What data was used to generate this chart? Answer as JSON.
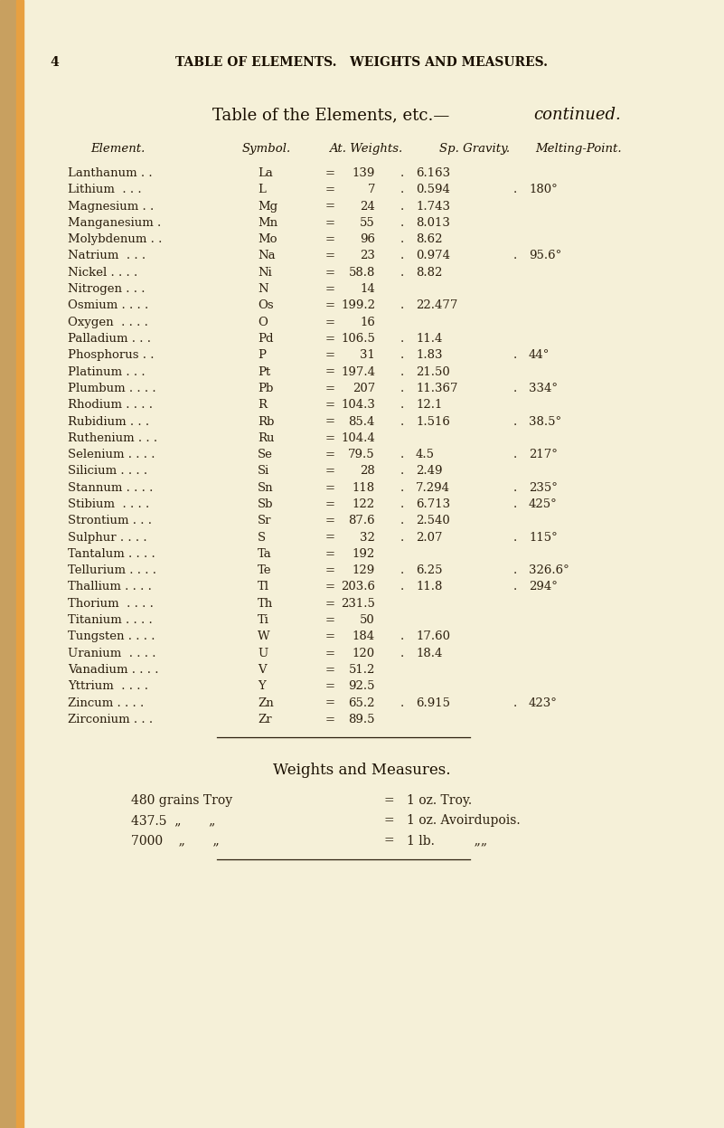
{
  "page_num": "4",
  "page_header": "TABLE OF ELEMENTS.   WEIGHTS AND MEASURES.",
  "table_title_normal": "Table of the Elements, etc.—",
  "table_title_italic": "continued.",
  "col_headers": [
    "Element.",
    "Symbol.",
    "At. Weights.",
    "Sp. Gravity.",
    "Melting-Point."
  ],
  "rows": [
    [
      "Lanthanum . .",
      "La",
      "139",
      "6.163",
      ""
    ],
    [
      "Lithium  . . .",
      "L",
      "7",
      "0.594",
      "180°"
    ],
    [
      "Magnesium . .",
      "Mg",
      "24",
      "1.743",
      ""
    ],
    [
      "Manganesium .",
      "Mn",
      "55",
      "8.013",
      ""
    ],
    [
      "Molybdenum . .",
      "Mo",
      "96",
      "8.62",
      ""
    ],
    [
      "Natrium  . . .",
      "Na",
      "23",
      "0.974",
      "95.6°"
    ],
    [
      "Nickel . . . .",
      "Ni",
      "58.8",
      "8.82",
      ""
    ],
    [
      "Nitrogen . . .",
      "N",
      "14",
      "",
      ""
    ],
    [
      "Osmium . . . .",
      "Os",
      "199.2",
      "22.477",
      ""
    ],
    [
      "Oxygen  . . . .",
      "O",
      "16",
      "",
      ""
    ],
    [
      "Palladium . . .",
      "Pd",
      "106.5",
      "11.4",
      ""
    ],
    [
      "Phosphorus . .",
      "P",
      "31",
      "1.83",
      "44°"
    ],
    [
      "Platinum . . .",
      "Pt",
      "197.4",
      "21.50",
      ""
    ],
    [
      "Plumbum . . . .",
      "Pb",
      "207",
      "11.367",
      "334°"
    ],
    [
      "Rhodium . . . .",
      "R",
      "104.3",
      "12.1",
      ""
    ],
    [
      "Rubidium . . .",
      "Rb",
      "85.4",
      "1.516",
      "38.5°"
    ],
    [
      "Ruthenium . . .",
      "Ru",
      "104.4",
      "",
      ""
    ],
    [
      "Selenium . . . .",
      "Se",
      "79.5",
      "4.5",
      "217°"
    ],
    [
      "Silicium . . . .",
      "Si",
      "28",
      "2.49",
      ""
    ],
    [
      "Stannum . . . .",
      "Sn",
      "118",
      "7.294",
      "235°"
    ],
    [
      "Stibium  . . . .",
      "Sb",
      "122",
      "6.713",
      "425°"
    ],
    [
      "Strontium . . .",
      "Sr",
      "87.6",
      "2.540",
      ""
    ],
    [
      "Sulphur . . . .",
      "S",
      "32",
      "2.07",
      "115°"
    ],
    [
      "Tantalum . . . .",
      "Ta",
      "192",
      "",
      ""
    ],
    [
      "Tellurium . . . .",
      "Te",
      "129",
      "6.25",
      "326.6°"
    ],
    [
      "Thallium . . . .",
      "Tl",
      "203.6",
      "11.8",
      "294°"
    ],
    [
      "Thorium  . . . .",
      "Th",
      "231.5",
      "",
      ""
    ],
    [
      "Titanium . . . .",
      "Ti",
      "50",
      "",
      ""
    ],
    [
      "Tungsten . . . .",
      "W",
      "184",
      "17.60",
      ""
    ],
    [
      "Uranium  . . . .",
      "U",
      "120",
      "18.4",
      ""
    ],
    [
      "Vanadium . . . .",
      "V",
      "51.2",
      "",
      ""
    ],
    [
      "Yttrium  . . . .",
      "Y",
      "92.5",
      "",
      ""
    ],
    [
      "Zincum . . . .",
      "Zn",
      "65.2",
      "6.915",
      "423°"
    ],
    [
      "Zirconium . . .",
      "Zr",
      "89.5",
      "",
      ""
    ]
  ],
  "weights_title": "Weights and Measures.",
  "wm_rows": [
    [
      "480 grains Troy",
      "=",
      "1 oz. Troy."
    ],
    [
      "437.5  „       „",
      "=",
      "1 oz. Avoirdupois."
    ],
    [
      "7000    „       „",
      "=",
      "1 lb.          „„"
    ]
  ],
  "bg_color": "#f5f0d8",
  "text_color": "#2c1f0e",
  "header_color": "#1a0f00",
  "binding_color1": "#c8a060",
  "binding_color2": "#e8a040"
}
